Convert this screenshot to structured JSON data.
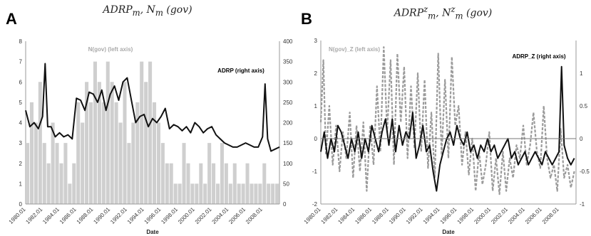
{
  "chart_data": [
    {
      "type": "line",
      "panel_label": "A",
      "title": "ADRP_m, N_m (gov)",
      "title_main": "ADRP",
      "title_sub": "m",
      "title_tail": ", N",
      "title_sub2": "m",
      "title_end": " (gov)",
      "xlabel": "Date",
      "x_ticks": [
        "1980.01",
        "1982.01",
        "1984.01",
        "1986.01",
        "1988.01",
        "1990.01",
        "1992.01",
        "1994.01",
        "1996.01",
        "1998.01",
        "2000.01",
        "2002.01",
        "2004.01",
        "2006.01",
        "2008.01"
      ],
      "x_range": [
        1980.0,
        2010.0
      ],
      "y_left": {
        "range": [
          0,
          8
        ],
        "ticks": [
          "0",
          "1",
          "2",
          "3",
          "4",
          "5",
          "6",
          "7",
          "8"
        ]
      },
      "y_right": {
        "range": [
          0,
          400
        ],
        "ticks": [
          "0",
          "50",
          "100",
          "150",
          "200",
          "250",
          "300",
          "350",
          "400"
        ]
      },
      "annotations": [
        {
          "text": "N(gov) (left axis)",
          "color": "#aaaaaa"
        },
        {
          "text": "ADRP (right axis)",
          "color": "#000000"
        }
      ],
      "series": [
        {
          "name": "N(gov)",
          "axis": "left",
          "style": "bars",
          "color": "#cfcfcf",
          "x": [
            1980.0,
            1980.5,
            1981.0,
            1981.5,
            1982.0,
            1982.5,
            1983.0,
            1983.5,
            1984.0,
            1984.5,
            1985.0,
            1985.5,
            1986.0,
            1986.5,
            1987.0,
            1987.5,
            1988.0,
            1988.5,
            1989.0,
            1989.5,
            1990.0,
            1990.5,
            1991.0,
            1991.5,
            1992.0,
            1992.5,
            1993.0,
            1993.5,
            1994.0,
            1994.5,
            1995.0,
            1995.5,
            1996.0,
            1996.5,
            1997.0,
            1997.5,
            1998.0,
            1998.5,
            1999.0,
            1999.5,
            2000.0,
            2000.5,
            2001.0,
            2001.5,
            2002.0,
            2002.5,
            2003.0,
            2003.5,
            2004.0,
            2004.5,
            2005.0,
            2005.5,
            2006.0,
            2006.5,
            2007.0,
            2007.5,
            2008.0,
            2008.5,
            2009.0,
            2009.5
          ],
          "values": [
            3,
            5,
            4,
            6,
            3,
            2,
            4,
            3,
            2,
            3,
            1,
            2,
            5,
            4,
            6,
            5,
            7,
            6,
            5,
            7,
            6,
            5,
            4,
            6,
            3,
            4,
            5,
            7,
            6,
            7,
            5,
            4,
            3,
            2,
            2,
            1,
            1,
            3,
            2,
            1,
            1,
            2,
            1,
            3,
            2,
            1,
            3,
            2,
            1,
            2,
            1,
            1,
            2,
            1,
            1,
            1,
            2,
            1,
            1,
            1
          ]
        },
        {
          "name": "ADRP",
          "axis": "right",
          "style": "line",
          "color": "#111111",
          "x": [
            1980.0,
            1980.5,
            1981.0,
            1981.5,
            1982.0,
            1982.3,
            1982.6,
            1983.0,
            1983.5,
            1984.0,
            1984.5,
            1985.0,
            1985.5,
            1986.0,
            1986.5,
            1987.0,
            1987.5,
            1988.0,
            1988.5,
            1989.0,
            1989.5,
            1990.0,
            1990.5,
            1991.0,
            1991.5,
            1992.0,
            1992.5,
            1993.0,
            1993.5,
            1994.0,
            1994.5,
            1995.0,
            1995.5,
            1996.0,
            1996.5,
            1997.0,
            1997.5,
            1998.0,
            1998.5,
            1999.0,
            1999.5,
            2000.0,
            2000.5,
            2001.0,
            2001.5,
            2002.0,
            2002.5,
            2003.0,
            2003.5,
            2004.0,
            2004.5,
            2005.0,
            2005.5,
            2006.0,
            2006.5,
            2007.0,
            2007.5,
            2008.0,
            2008.3,
            2008.6,
            2009.0,
            2009.5,
            2010.0
          ],
          "values": [
            230,
            190,
            200,
            185,
            215,
            345,
            190,
            190,
            165,
            175,
            165,
            170,
            160,
            260,
            255,
            230,
            275,
            270,
            250,
            280,
            230,
            270,
            290,
            255,
            300,
            310,
            255,
            200,
            215,
            220,
            190,
            210,
            200,
            215,
            235,
            185,
            195,
            190,
            180,
            190,
            175,
            200,
            190,
            175,
            185,
            190,
            170,
            160,
            150,
            145,
            140,
            140,
            145,
            150,
            145,
            140,
            140,
            165,
            295,
            160,
            130,
            135,
            140
          ]
        }
      ]
    },
    {
      "type": "line",
      "panel_label": "B",
      "title": "ADRP^z_m, N^z_m (gov)",
      "title_main": "ADRP",
      "title_sub": "m",
      "title_sup": "z",
      "title_tail": ", N",
      "title_sub2": "m",
      "title_sup2": "z",
      "title_end": " (gov)",
      "xlabel": "Date",
      "x_ticks": [
        "1980.01",
        "1982.01",
        "1984.01",
        "1986.01",
        "1988.01",
        "1990.01",
        "1992.01",
        "1994.01",
        "1996.01",
        "1998.01",
        "2000.01",
        "2002.01",
        "2004.01",
        "2006.01",
        "2008.01"
      ],
      "x_range": [
        1980.0,
        2010.0
      ],
      "y_left": {
        "range": [
          -2,
          3
        ],
        "ticks": [
          "-2",
          "-1",
          "0",
          "1",
          "2",
          "3"
        ]
      },
      "y_right": {
        "range": [
          -1,
          1.5
        ],
        "ticks": [
          "-1",
          "-0.5",
          "0",
          "0.5",
          "1"
        ]
      },
      "annotations": [
        {
          "text": "N(gov)_Z (left axis)",
          "color": "#aaaaaa"
        },
        {
          "text": "ADRP_Z (right axis)",
          "color": "#000000"
        }
      ],
      "series": [
        {
          "name": "N(gov)_Z",
          "axis": "left",
          "style": "dashed",
          "color": "#9b9b9b",
          "x": [
            1980.0,
            1980.3,
            1980.6,
            1981.0,
            1981.4,
            1981.8,
            1982.2,
            1982.6,
            1983.0,
            1983.4,
            1983.8,
            1984.2,
            1984.6,
            1985.0,
            1985.4,
            1985.8,
            1986.2,
            1986.6,
            1987.0,
            1987.4,
            1987.8,
            1988.2,
            1988.6,
            1989.0,
            1989.4,
            1989.8,
            1990.2,
            1990.6,
            1991.0,
            1991.4,
            1991.8,
            1992.2,
            1992.6,
            1993.0,
            1993.4,
            1993.8,
            1994.2,
            1994.6,
            1995.0,
            1995.4,
            1995.8,
            1996.2,
            1996.6,
            1997.0,
            1997.4,
            1997.8,
            1998.2,
            1998.6,
            1999.0,
            1999.4,
            1999.8,
            2000.2,
            2000.6,
            2001.0,
            2001.4,
            2001.8,
            2002.2,
            2002.6,
            2003.0,
            2003.4,
            2003.8,
            2004.2,
            2004.6,
            2005.0,
            2005.4,
            2005.8,
            2006.2,
            2006.6,
            2007.0,
            2007.4,
            2007.8,
            2008.2,
            2008.6,
            2009.0,
            2009.4,
            2009.8
          ],
          "values": [
            0.5,
            2.4,
            -0.5,
            1.0,
            -0.8,
            0.4,
            -1.0,
            0.2,
            -0.6,
            0.8,
            -1.2,
            0.4,
            -1.0,
            0.5,
            -1.6,
            0.4,
            -0.8,
            1.6,
            -0.4,
            2.8,
            0.2,
            2.4,
            -0.8,
            2.6,
            0.5,
            2.2,
            -0.6,
            1.6,
            -0.3,
            2.0,
            -0.4,
            1.8,
            -0.9,
            0.8,
            -1.2,
            2.6,
            -0.5,
            1.8,
            -0.6,
            2.5,
            0.4,
            1.0,
            -0.8,
            0.2,
            -1.1,
            0.0,
            -1.6,
            -0.4,
            -1.4,
            -0.8,
            0.2,
            -1.6,
            -0.6,
            -1.7,
            -0.4,
            -1.6,
            -0.6,
            -1.2,
            -0.2,
            -0.6,
            0.4,
            -0.8,
            -0.2,
            0.8,
            -0.4,
            -0.9,
            1.0,
            -0.6,
            -1.2,
            -0.8,
            -1.6,
            0.3,
            -1.2,
            -0.8,
            -1.5,
            -1.0
          ]
        },
        {
          "name": "ADRP_Z",
          "axis": "right",
          "style": "line",
          "color": "#111111",
          "x": [
            1980.0,
            1980.4,
            1980.8,
            1981.2,
            1981.6,
            1982.0,
            1982.4,
            1982.8,
            1983.2,
            1983.6,
            1984.0,
            1984.4,
            1984.8,
            1985.2,
            1985.6,
            1986.0,
            1986.4,
            1986.8,
            1987.2,
            1987.6,
            1988.0,
            1988.4,
            1988.8,
            1989.2,
            1989.6,
            1990.0,
            1990.4,
            1990.8,
            1991.2,
            1991.6,
            1992.0,
            1992.4,
            1992.8,
            1993.2,
            1993.6,
            1994.0,
            1994.4,
            1994.8,
            1995.2,
            1995.6,
            1996.0,
            1996.4,
            1996.8,
            1997.2,
            1997.6,
            1998.0,
            1998.4,
            1998.8,
            1999.2,
            1999.6,
            2000.0,
            2000.4,
            2000.8,
            2001.2,
            2001.6,
            2002.0,
            2002.4,
            2002.8,
            2003.2,
            2003.6,
            2004.0,
            2004.4,
            2004.8,
            2005.2,
            2005.6,
            2006.0,
            2006.4,
            2006.8,
            2007.2,
            2007.6,
            2008.0,
            2008.3,
            2008.6,
            2009.0,
            2009.4,
            2009.8
          ],
          "values": [
            -0.2,
            0.1,
            -0.3,
            0.0,
            -0.2,
            0.2,
            0.1,
            -0.1,
            -0.3,
            0.0,
            -0.2,
            0.1,
            -0.3,
            0.0,
            -0.2,
            0.2,
            0.0,
            -0.2,
            0.1,
            0.3,
            -0.1,
            0.3,
            -0.2,
            0.2,
            -0.1,
            0.1,
            0.0,
            0.4,
            -0.3,
            -0.1,
            0.2,
            -0.2,
            -0.1,
            -0.5,
            -0.8,
            -0.4,
            -0.2,
            0.0,
            0.1,
            -0.1,
            0.2,
            0.0,
            -0.1,
            0.1,
            -0.2,
            -0.1,
            -0.3,
            -0.1,
            -0.2,
            0.0,
            -0.2,
            -0.1,
            -0.3,
            -0.2,
            -0.1,
            0.0,
            -0.3,
            -0.2,
            -0.4,
            -0.3,
            -0.2,
            -0.4,
            -0.3,
            -0.2,
            -0.3,
            -0.4,
            -0.2,
            -0.3,
            -0.4,
            -0.3,
            -0.2,
            1.1,
            -0.1,
            -0.3,
            -0.4,
            -0.3
          ]
        }
      ]
    }
  ]
}
